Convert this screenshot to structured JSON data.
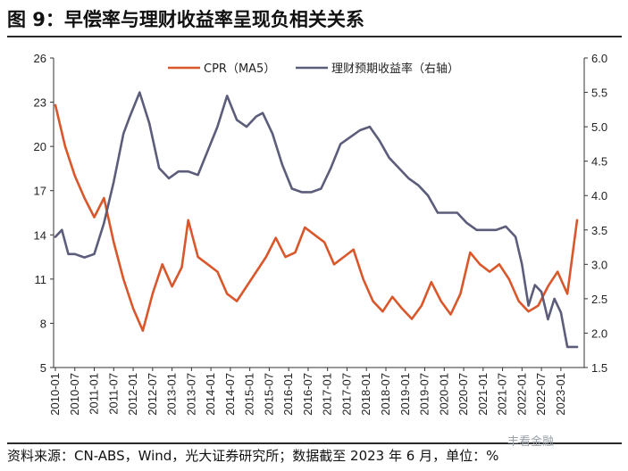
{
  "header": {
    "title": "图 9：早偿率与理财收益率呈现负相关关系"
  },
  "footer": {
    "source": "资料来源：CN-ABS，Wind，光大证券研究所；数据截至 2023 年 6 月，单位：%"
  },
  "watermark": {
    "text": "丰看金融"
  },
  "chart_data": {
    "type": "line",
    "title": "",
    "xlabel": "",
    "ylabel": "",
    "grid": false,
    "legend_position": "top",
    "x_tick_labels": [
      "2010-01",
      "2010-07",
      "2011-01",
      "2011-07",
      "2012-01",
      "2012-07",
      "2013-01",
      "2013-07",
      "2014-01",
      "2014-07",
      "2015-01",
      "2015-07",
      "2016-01",
      "2016-07",
      "2017-01",
      "2017-07",
      "2018-01",
      "2018-07",
      "2019-01",
      "2019-07",
      "2020-01",
      "2020-07",
      "2021-01",
      "2021-07",
      "2022-01",
      "2022-07",
      "2023-01"
    ],
    "y_left": {
      "lim": [
        5,
        26
      ],
      "ticks": [
        5,
        8,
        11,
        14,
        17,
        20,
        23,
        26
      ]
    },
    "y_right": {
      "lim": [
        1.5,
        6.0
      ],
      "ticks": [
        "1.5",
        "2.0",
        "2.5",
        "3.0",
        "3.5",
        "4.0",
        "4.5",
        "5.0",
        "5.5",
        "6.0"
      ]
    },
    "series": [
      {
        "name": "CPR（MA5）",
        "axis": "left",
        "color": "#d9572b",
        "x": [
          "2010-01",
          "2010-04",
          "2010-07",
          "2010-10",
          "2011-01",
          "2011-04",
          "2011-07",
          "2011-10",
          "2012-01",
          "2012-04",
          "2012-07",
          "2012-10",
          "2013-01",
          "2013-04",
          "2013-06",
          "2013-09",
          "2013-12",
          "2014-03",
          "2014-06",
          "2014-09",
          "2014-12",
          "2015-03",
          "2015-06",
          "2015-09",
          "2015-12",
          "2016-03",
          "2016-06",
          "2016-09",
          "2016-12",
          "2017-03",
          "2017-06",
          "2017-09",
          "2017-12",
          "2018-03",
          "2018-06",
          "2018-09",
          "2018-12",
          "2019-03",
          "2019-06",
          "2019-09",
          "2019-12",
          "2020-03",
          "2020-06",
          "2020-09",
          "2020-12",
          "2021-03",
          "2021-06",
          "2021-09",
          "2021-12",
          "2022-03",
          "2022-06",
          "2022-09",
          "2022-12",
          "2023-03",
          "2023-06"
        ],
        "values": [
          22.8,
          20.0,
          18.0,
          16.5,
          15.2,
          16.5,
          13.5,
          11.0,
          9.0,
          7.5,
          10.0,
          12.0,
          10.5,
          11.8,
          15.0,
          12.5,
          12.0,
          11.5,
          10.0,
          9.5,
          10.5,
          11.5,
          12.5,
          13.8,
          12.5,
          12.8,
          14.5,
          14.0,
          13.5,
          12.0,
          12.5,
          13.0,
          11.0,
          9.5,
          8.8,
          9.8,
          9.0,
          8.3,
          9.2,
          10.8,
          9.5,
          8.6,
          10.0,
          12.8,
          12.0,
          11.5,
          12.0,
          11.0,
          9.5,
          8.8,
          9.2,
          10.5,
          11.5,
          10.0,
          15.0
        ]
      },
      {
        "name": "理财预期收益率（右轴）",
        "axis": "right",
        "color": "#5b5d7a",
        "x": [
          "2010-01",
          "2010-03",
          "2010-05",
          "2010-07",
          "2010-10",
          "2011-01",
          "2011-04",
          "2011-07",
          "2011-10",
          "2011-12",
          "2012-03",
          "2012-06",
          "2012-09",
          "2012-12",
          "2013-03",
          "2013-06",
          "2013-09",
          "2013-12",
          "2014-03",
          "2014-06",
          "2014-09",
          "2014-12",
          "2015-03",
          "2015-05",
          "2015-08",
          "2015-11",
          "2016-02",
          "2016-05",
          "2016-08",
          "2016-11",
          "2017-02",
          "2017-05",
          "2017-08",
          "2017-11",
          "2018-02",
          "2018-05",
          "2018-08",
          "2018-11",
          "2019-02",
          "2019-05",
          "2019-08",
          "2019-11",
          "2020-02",
          "2020-05",
          "2020-08",
          "2020-11",
          "2021-02",
          "2021-05",
          "2021-08",
          "2021-11",
          "2022-01",
          "2022-03",
          "2022-05",
          "2022-07",
          "2022-09",
          "2022-11",
          "2023-01",
          "2023-03",
          "2023-06"
        ],
        "values": [
          3.4,
          3.5,
          3.15,
          3.15,
          3.1,
          3.15,
          3.6,
          4.2,
          4.9,
          5.15,
          5.5,
          5.05,
          4.4,
          4.25,
          4.35,
          4.35,
          4.3,
          4.65,
          5.0,
          5.45,
          5.1,
          5.0,
          5.15,
          5.2,
          4.9,
          4.45,
          4.1,
          4.05,
          4.05,
          4.1,
          4.4,
          4.75,
          4.85,
          4.95,
          5.0,
          4.8,
          4.55,
          4.4,
          4.25,
          4.15,
          4.0,
          3.75,
          3.75,
          3.75,
          3.6,
          3.5,
          3.5,
          3.5,
          3.55,
          3.4,
          3.0,
          2.4,
          2.7,
          2.6,
          2.2,
          2.5,
          2.3,
          1.8,
          1.8
        ]
      }
    ]
  }
}
